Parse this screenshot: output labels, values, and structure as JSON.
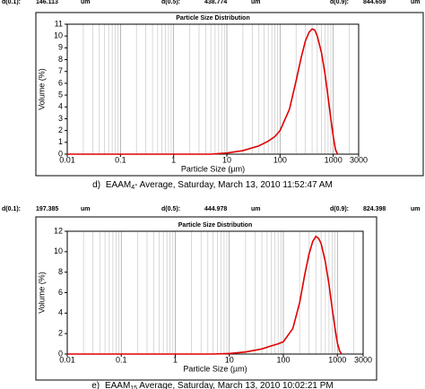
{
  "chart_data": [
    {
      "type": "line",
      "title": "Particle Size Distribution",
      "statistics": [
        {
          "label": "d(0.1):",
          "value": 146.113,
          "unit": "um"
        },
        {
          "label": "d(0.5):",
          "value": 438.774,
          "unit": "um"
        },
        {
          "label": "d(0.9):",
          "value": 844.659,
          "unit": "um"
        }
      ],
      "x_label": "Particle Size (µm)",
      "y_label": "Volume (%)",
      "caption": {
        "label": "d)",
        "name": "EAAM",
        "subscript": "4",
        "rest": "- Average, Saturday, March 13, 2010 11:52:47 AM"
      },
      "x": [
        0.01,
        1,
        5,
        10,
        20,
        40,
        60,
        80,
        100,
        150,
        200,
        250,
        300,
        350,
        400,
        450,
        500,
        600,
        700,
        800,
        900,
        1000,
        1100,
        1200
      ],
      "series": [
        {
          "name": "Average",
          "color": "#e00000",
          "values": [
            0,
            0,
            0,
            0.1,
            0.3,
            0.7,
            1.1,
            1.5,
            2.0,
            3.8,
            6.2,
            8.2,
            9.6,
            10.3,
            10.6,
            10.5,
            10.0,
            8.6,
            6.8,
            4.8,
            3.0,
            1.5,
            0.4,
            0
          ]
        }
      ],
      "log_x": true,
      "xlim": [
        0.01,
        3000
      ],
      "xticks": [
        0.01,
        0.1,
        1,
        10,
        100,
        1000,
        3000
      ],
      "ylim": [
        0,
        11
      ],
      "yticks": [
        0,
        1,
        2,
        3,
        4,
        5,
        6,
        7,
        8,
        9,
        10,
        11
      ]
    },
    {
      "type": "line",
      "title": "Particle Size Distribution",
      "statistics": [
        {
          "label": "d(0.1):",
          "value": 197.385,
          "unit": "um"
        },
        {
          "label": "d(0.5):",
          "value": 444.978,
          "unit": "um"
        },
        {
          "label": "d(0.9):",
          "value": 824.398,
          "unit": "um"
        }
      ],
      "x_label": "Particle Size (µm)",
      "y_label": "Volume (%)",
      "caption": {
        "label": "e)",
        "name": "EAAM",
        "subscript": "15",
        "rest": " Average, Saturday, March 13, 2010 10:02:21 PM"
      },
      "x": [
        0.01,
        1,
        5,
        10,
        20,
        40,
        60,
        80,
        100,
        150,
        200,
        250,
        300,
        350,
        400,
        450,
        500,
        600,
        700,
        800,
        900,
        1000,
        1100,
        1200
      ],
      "series": [
        {
          "name": "Average",
          "color": "#e00000",
          "values": [
            0,
            0,
            0,
            0.05,
            0.2,
            0.5,
            0.8,
            1.0,
            1.2,
            2.5,
            5.0,
            7.8,
            9.8,
            11.0,
            11.5,
            11.3,
            10.8,
            9.0,
            6.8,
            4.5,
            2.6,
            1.1,
            0.3,
            0
          ]
        }
      ],
      "log_x": true,
      "xlim": [
        0.01,
        3000
      ],
      "xticks": [
        0.01,
        0.1,
        1,
        10,
        100,
        1000,
        3000
      ],
      "ylim": [
        0,
        12
      ],
      "yticks": [
        0,
        2,
        4,
        6,
        8,
        10,
        12
      ]
    }
  ]
}
